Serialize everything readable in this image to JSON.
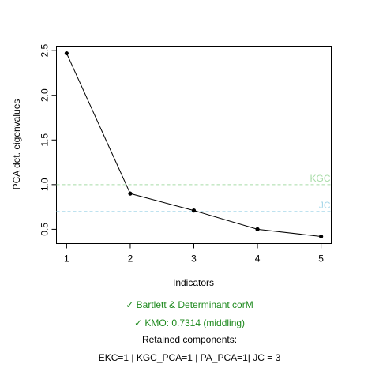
{
  "chart_data": {
    "type": "line",
    "xlabel": "Indicators",
    "ylabel": "PCA det. eigenvalues",
    "x": [
      1,
      2,
      3,
      4,
      5
    ],
    "y": [
      2.47,
      0.9,
      0.71,
      0.5,
      0.42
    ],
    "xlim": [
      0.84,
      5.16
    ],
    "ylim": [
      0.34,
      2.55
    ],
    "xticks": [
      "1",
      "2",
      "3",
      "4",
      "5"
    ],
    "yticks": [
      "0.5",
      "1.0",
      "1.5",
      "2.0",
      "2.5"
    ],
    "reference_lines": [
      {
        "label": "KGC",
        "value": 1.0,
        "color": "#a8dca8"
      },
      {
        "label": "JC",
        "value": 0.7,
        "color": "#a8d8ea"
      }
    ],
    "grid": false,
    "series_color": "#000000"
  },
  "captions": {
    "bartlett": "✓ Bartlett & Determinant corM",
    "kmo": "✓ KMO: 0.7314 (middling)",
    "retained_title": "Retained components:",
    "retained_values": "EKC=1 | KGC_PCA=1 | PA_PCA=1| JC = 3"
  },
  "colors": {
    "check_green": "#1e8a1e"
  }
}
